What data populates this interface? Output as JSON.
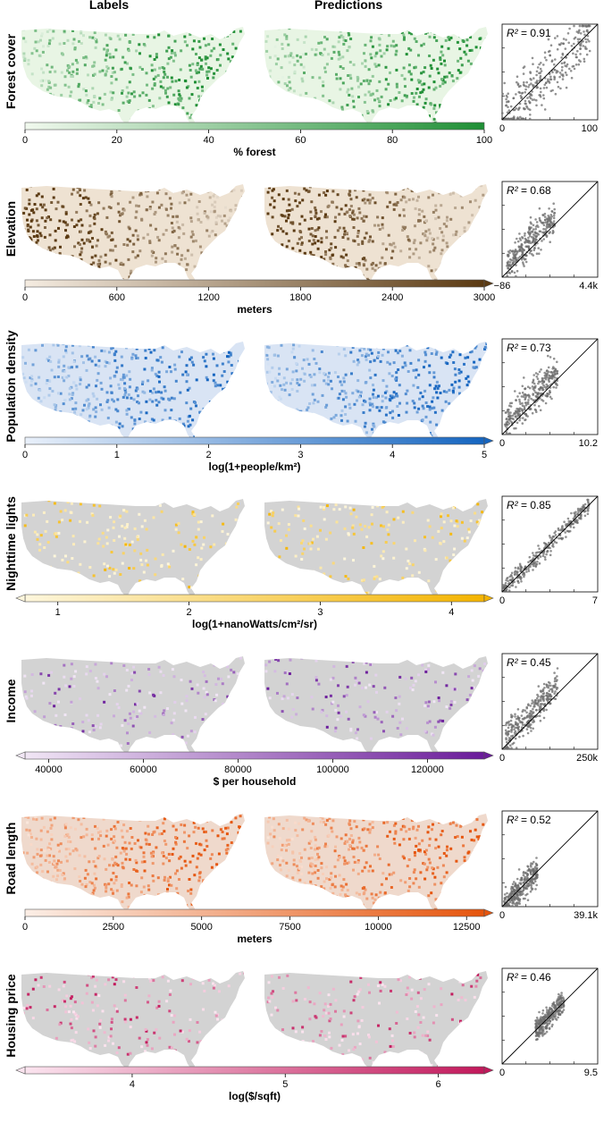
{
  "headers": {
    "labels": "Labels",
    "predictions": "Predictions"
  },
  "chart_data": [
    {
      "type": "heatmap",
      "row_label": "Forest cover",
      "palette": [
        "#f1f9ee",
        "#1f8f35"
      ],
      "map_fill": "#e8f5e4",
      "map_style": "east",
      "colorbar": {
        "min": 0,
        "max": 100,
        "ticks": [
          "0",
          "20",
          "40",
          "60",
          "80",
          "100"
        ],
        "tick_values": [
          0,
          20,
          40,
          60,
          80,
          100
        ],
        "label": "% forest",
        "arrow_left": false,
        "arrow_right": false
      },
      "scatter": {
        "type": "scatter",
        "r2_label": "R²",
        "r2_value": "= 0.91",
        "x_min_label": "0",
        "x_max_label": "100",
        "cloud": "full",
        "spread": 0.3
      }
    },
    {
      "type": "heatmap",
      "row_label": "Elevation",
      "palette": [
        "#f5ece1",
        "#5b3a12"
      ],
      "map_fill": "#eee2d2",
      "map_style": "west",
      "colorbar": {
        "min": 0,
        "max": 3000,
        "ticks": [
          "0",
          "600",
          "1200",
          "1800",
          "2400",
          "3000"
        ],
        "tick_values": [
          0,
          600,
          1200,
          1800,
          2400,
          3000
        ],
        "label": "meters",
        "arrow_left": false,
        "arrow_right": true
      },
      "scatter": {
        "type": "scatter",
        "r2_label": "R²",
        "r2_value": "= 0.68",
        "x_min_label": "−86",
        "x_max_label": "4.4k",
        "cloud": "low",
        "spread": 0.18
      }
    },
    {
      "type": "heatmap",
      "row_label": "Population density",
      "palette": [
        "#e9f0fa",
        "#1565c0"
      ],
      "map_fill": "#d9e4f4",
      "map_style": "east",
      "colorbar": {
        "min": 0,
        "max": 5,
        "ticks": [
          "0",
          "1",
          "2",
          "3",
          "4",
          "5"
        ],
        "tick_values": [
          0,
          1,
          2,
          3,
          4,
          5
        ],
        "label": "log(1+people/km²)",
        "arrow_left": false,
        "arrow_right": true
      },
      "scatter": {
        "type": "scatter",
        "r2_label": "R²",
        "r2_value": "= 0.73",
        "x_min_label": "0",
        "x_max_label": "10.2",
        "cloud": "mid",
        "spread": 0.2
      }
    },
    {
      "type": "heatmap",
      "row_label": "Nighttime lights",
      "palette": [
        "#fdf6dc",
        "#f4b400"
      ],
      "map_fill": "#d3d3d3",
      "map_style": "sparse",
      "colorbar": {
        "min": 0.75,
        "max": 4.25,
        "ticks": [
          "1",
          "2",
          "3",
          "4"
        ],
        "tick_values": [
          1,
          2,
          3,
          4
        ],
        "label": "log(1+nanoWatts/cm²/sr)",
        "arrow_left": true,
        "arrow_right": true
      },
      "scatter": {
        "type": "scatter",
        "r2_label": "R²",
        "r2_value": "= 0.85",
        "x_min_label": "0",
        "x_max_label": "7",
        "cloud": "full",
        "spread": 0.1
      }
    },
    {
      "type": "heatmap",
      "row_label": "Income",
      "palette": [
        "#f1e6f5",
        "#6a1b9a"
      ],
      "map_fill": "#d3d3d3",
      "map_style": "sparse",
      "colorbar": {
        "min": 35000,
        "max": 132000,
        "ticks": [
          "40000",
          "60000",
          "80000",
          "100000",
          "120000"
        ],
        "tick_values": [
          40000,
          60000,
          80000,
          100000,
          120000
        ],
        "label": "$ per household",
        "arrow_left": true,
        "arrow_right": true
      },
      "scatter": {
        "type": "scatter",
        "r2_label": "R²",
        "r2_value": "= 0.45",
        "x_min_label": "0",
        "x_max_label": "250k",
        "cloud": "mid",
        "spread": 0.18
      }
    },
    {
      "type": "heatmap",
      "row_label": "Road length",
      "palette": [
        "#fbeee6",
        "#e6550d"
      ],
      "map_fill": "#efd9cc",
      "map_style": "east",
      "colorbar": {
        "min": 0,
        "max": 13000,
        "ticks": [
          "0",
          "2500",
          "5000",
          "7500",
          "10000",
          "12500"
        ],
        "tick_values": [
          0,
          2500,
          5000,
          7500,
          10000,
          12500
        ],
        "label": "meters",
        "arrow_left": false,
        "arrow_right": true
      },
      "scatter": {
        "type": "scatter",
        "r2_label": "R²",
        "r2_value": "= 0.52",
        "x_min_label": "0",
        "x_max_label": "39.1k",
        "cloud": "narrow",
        "spread": 0.16
      }
    },
    {
      "type": "heatmap",
      "row_label": "Housing price",
      "palette": [
        "#fbe4ef",
        "#c2185b"
      ],
      "map_fill": "#d3d3d3",
      "map_style": "sparse",
      "colorbar": {
        "min": 3.3,
        "max": 6.3,
        "ticks": [
          "4",
          "5",
          "6"
        ],
        "tick_values": [
          4,
          5,
          6
        ],
        "label": "log($/sqft)",
        "arrow_left": true,
        "arrow_right": true
      },
      "scatter": {
        "type": "scatter",
        "r2_label": "R²",
        "r2_value": "= 0.46",
        "x_min_label": "0",
        "x_max_label": "9.5",
        "cloud": "blob",
        "spread": 0.12
      }
    }
  ]
}
